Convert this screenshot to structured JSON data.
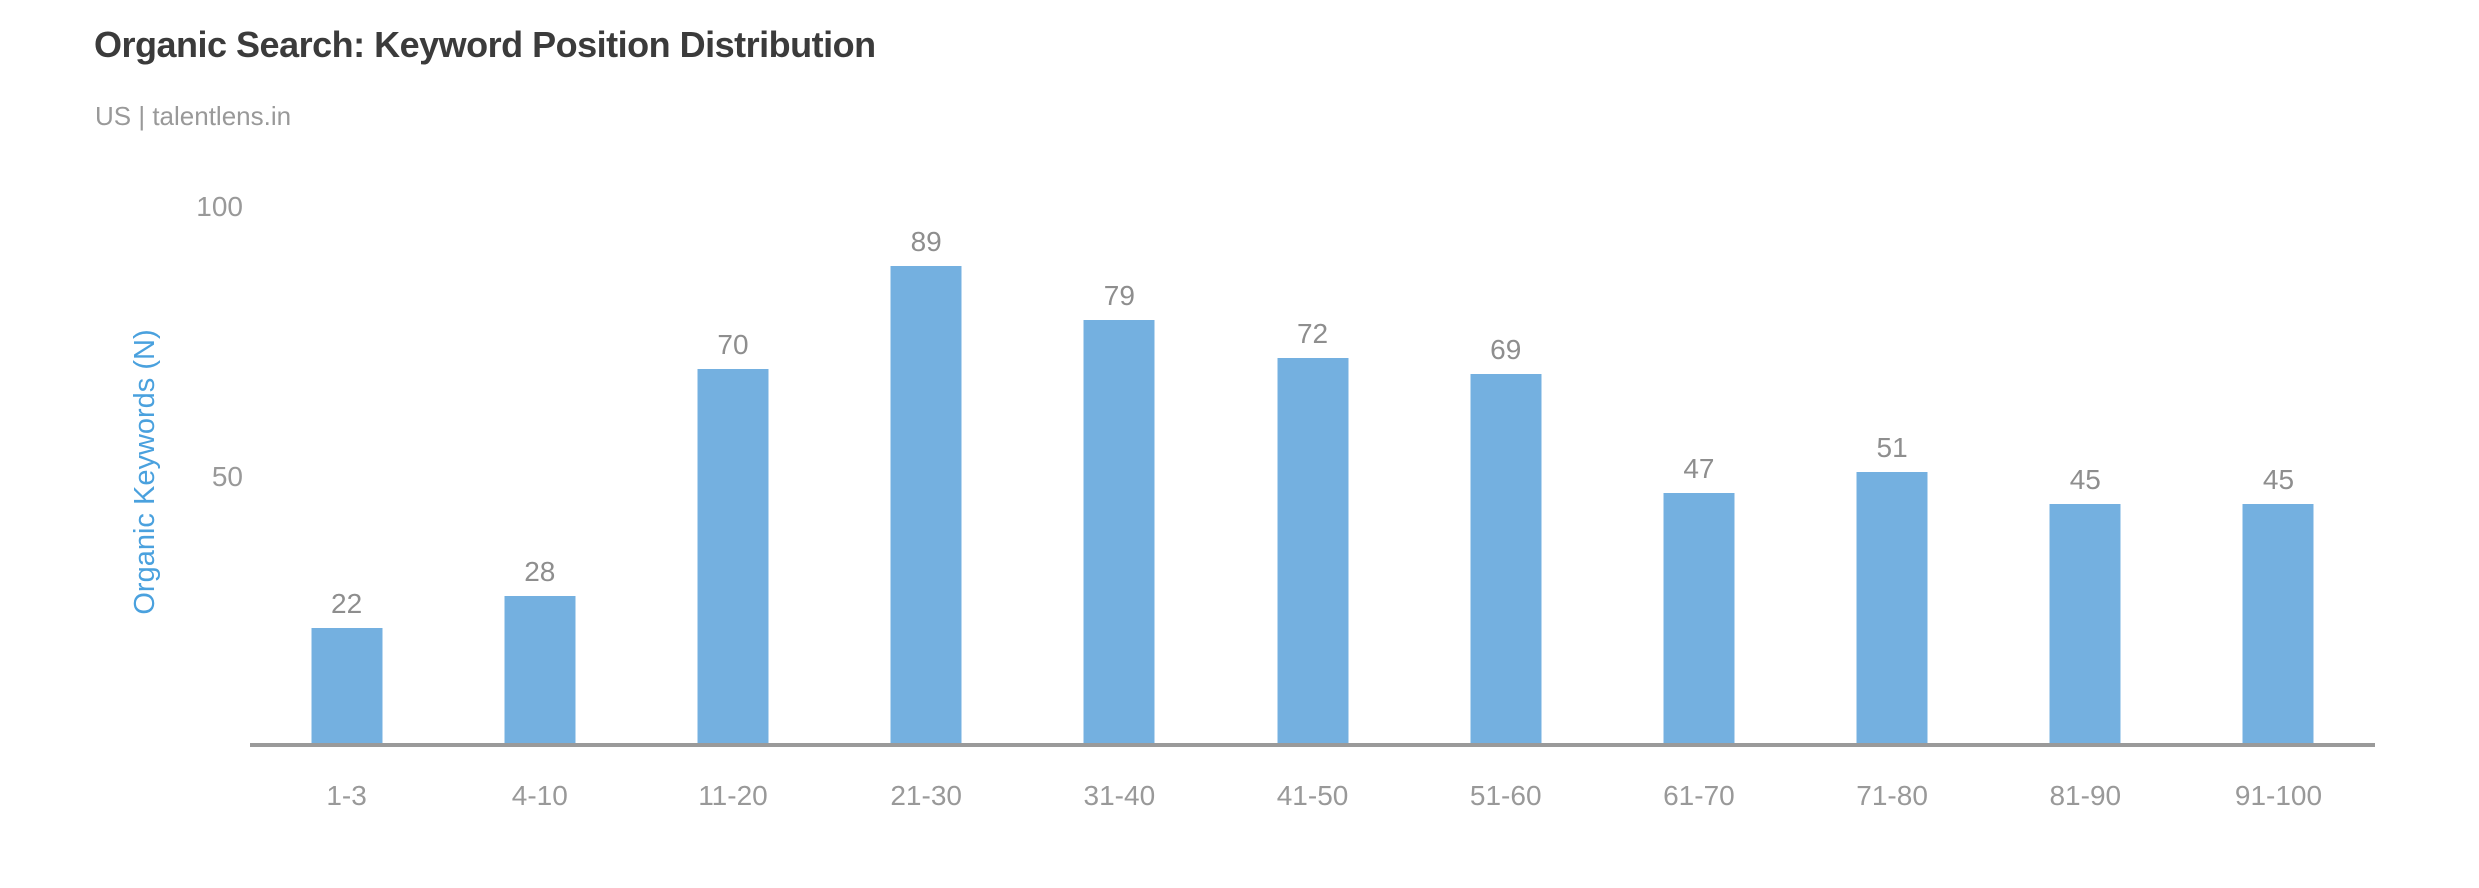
{
  "header": {
    "title": "Organic Search: Keyword Position Distribution",
    "subtitle": "US | talentlens.in"
  },
  "chart_data": {
    "type": "bar",
    "title": "Organic Search: Keyword Position Distribution",
    "subtitle": "US | talentlens.in",
    "categories": [
      "1-3",
      "4-10",
      "11-20",
      "21-30",
      "31-40",
      "41-50",
      "51-60",
      "61-70",
      "71-80",
      "81-90",
      "91-100"
    ],
    "values": [
      22,
      28,
      70,
      89,
      79,
      72,
      69,
      47,
      51,
      45,
      45
    ],
    "xlabel": "",
    "ylabel": "Organic Keywords (N)",
    "yticks": [
      50,
      100
    ],
    "ylim": [
      0,
      100
    ],
    "grid": false,
    "legend": "none",
    "bar_color": "#74b0e0",
    "ylabel_color": "#4aa1de",
    "axis_color": "#9a9a9a",
    "title_color": "#3b3b3b",
    "tick_label_color": "#999999",
    "value_label_color": "#8e8e8e"
  }
}
